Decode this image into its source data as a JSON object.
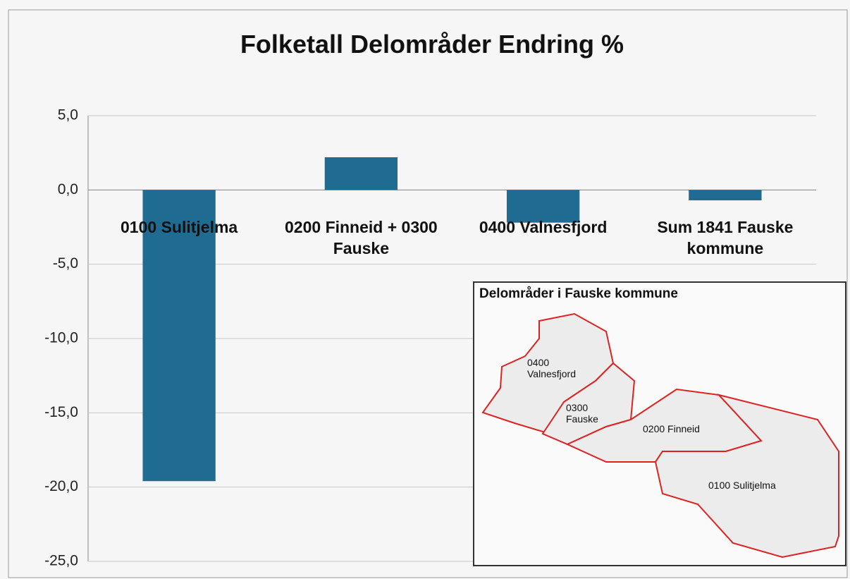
{
  "chart_data": {
    "type": "bar",
    "title": "Folketall Delområder Endring %",
    "categories": [
      "0100 Sulitjelma",
      "0200 Finneid + 0300 Fauske",
      "0400 Valnesfjord",
      "Sum 1841 Fauske kommune"
    ],
    "values": [
      -19.6,
      2.2,
      -2.2,
      -0.7
    ],
    "color": "#1f6b91",
    "ylim": [
      -25,
      5
    ],
    "yticks": [
      {
        "value": 5,
        "label": "5,0"
      },
      {
        "value": 0,
        "label": "0,0"
      },
      {
        "value": -5,
        "label": "-5,0"
      },
      {
        "value": -10,
        "label": "-10,0"
      },
      {
        "value": -15,
        "label": "-15,0"
      },
      {
        "value": -20,
        "label": "-20,0"
      },
      {
        "value": -25,
        "label": "-25,0"
      }
    ],
    "grid": true,
    "inset": {
      "title": "Delområder i Fauske kommune",
      "labels": [
        "0400 Valnesfjord",
        "0300 Fauske",
        "0200 Finneid",
        "0100 Sulitjelma"
      ]
    }
  }
}
